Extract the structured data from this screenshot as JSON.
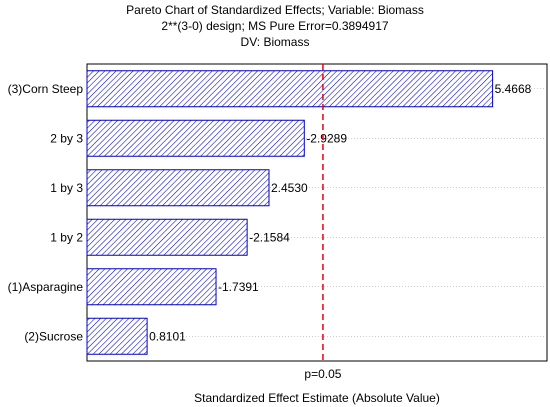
{
  "chart_data": {
    "type": "bar",
    "orientation": "horizontal",
    "title_lines": [
      "Pareto Chart of Standardized Effects; Variable: Biomass",
      "2**(3-0) design; MS Pure Error=0.3894917",
      "DV: Biomass"
    ],
    "xlabel": "Standardized Effect Estimate (Absolute Value)",
    "categories": [
      "(3)Corn Steep",
      "2 by 3",
      "1 by 3",
      "1 by 2",
      "(1)Asparagine",
      "(2)Sucrose"
    ],
    "values": [
      5.4668,
      2.9289,
      2.453,
      2.1584,
      1.7391,
      0.8101
    ],
    "value_labels": [
      "5.4668",
      "-2.9289",
      "2.4530",
      "-2.1584",
      "-1.7391",
      "0.8101"
    ],
    "xlim": [
      0,
      6.2
    ],
    "reference_line": {
      "value": 3.18,
      "label": "p=0.05",
      "color": "#e8000b"
    },
    "bar_color": "#0000c8",
    "grid": "horizontal dotted"
  }
}
